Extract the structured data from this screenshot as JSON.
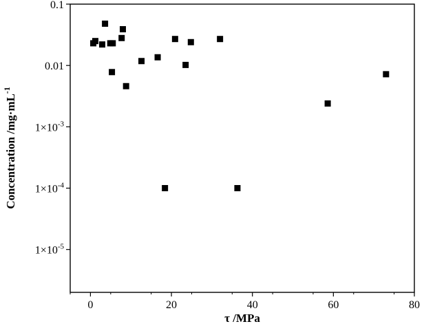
{
  "chart_data": {
    "type": "scatter",
    "title": "",
    "xlabel": "τ /MPa",
    "ylabel": "Concentration /mg·mL",
    "ylabel_superscript": "-1",
    "xlim": [
      -5,
      80
    ],
    "ylim": [
      2e-06,
      0.1
    ],
    "yscale": "log",
    "grid": false,
    "legend": "none",
    "marker": "square",
    "marker_color": "#000000",
    "x_ticks": [
      {
        "value": 0,
        "label": "0"
      },
      {
        "value": 20,
        "label": "20"
      },
      {
        "value": 40,
        "label": "40"
      },
      {
        "value": 60,
        "label": "60"
      },
      {
        "value": 80,
        "label": "80"
      }
    ],
    "y_ticks": [
      {
        "value": 0.1,
        "label": "0.1",
        "mant": "",
        "exp": ""
      },
      {
        "value": 0.01,
        "label": "0.01",
        "mant": "",
        "exp": ""
      },
      {
        "value": 0.001,
        "label": "",
        "mant": "1×10",
        "exp": "-3"
      },
      {
        "value": 0.0001,
        "label": "",
        "mant": "1×10",
        "exp": "-4"
      },
      {
        "value": 1e-05,
        "label": "",
        "mant": "1×10",
        "exp": "-5"
      }
    ],
    "points": [
      {
        "x": 0.7,
        "y": 0.023
      },
      {
        "x": 1.2,
        "y": 0.025
      },
      {
        "x": 2.9,
        "y": 0.022
      },
      {
        "x": 3.6,
        "y": 0.048
      },
      {
        "x": 4.9,
        "y": 0.023
      },
      {
        "x": 5.5,
        "y": 0.023
      },
      {
        "x": 5.3,
        "y": 0.0078
      },
      {
        "x": 7.7,
        "y": 0.028
      },
      {
        "x": 8.0,
        "y": 0.039
      },
      {
        "x": 8.8,
        "y": 0.0046
      },
      {
        "x": 12.6,
        "y": 0.0118
      },
      {
        "x": 16.6,
        "y": 0.0136
      },
      {
        "x": 18.4,
        "y": 0.0001
      },
      {
        "x": 20.9,
        "y": 0.027
      },
      {
        "x": 23.5,
        "y": 0.0102
      },
      {
        "x": 24.8,
        "y": 0.024
      },
      {
        "x": 32.0,
        "y": 0.027
      },
      {
        "x": 36.3,
        "y": 0.0001
      },
      {
        "x": 58.6,
        "y": 0.0024
      },
      {
        "x": 73.0,
        "y": 0.0072
      }
    ]
  }
}
